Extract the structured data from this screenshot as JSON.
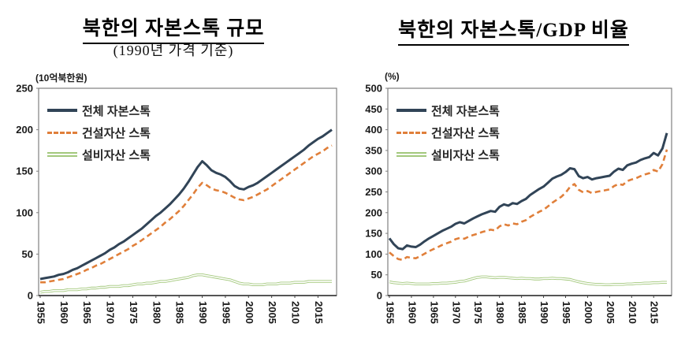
{
  "page": {
    "background": "#ffffff"
  },
  "chart_data": [
    {
      "type": "line",
      "title": "북한의 자본스톡 규모",
      "subtitle": "(1990년 가격 기준)",
      "unit_label": "(10억북한원)",
      "legend_position": "top-left",
      "grid": false,
      "frame_color": "#808080",
      "axis_color": "#404040",
      "ylim": [
        0,
        250
      ],
      "yticks": [
        0,
        50,
        100,
        150,
        200,
        250
      ],
      "xticks": [
        1955,
        1960,
        1965,
        1970,
        1975,
        1980,
        1985,
        1990,
        1995,
        2000,
        2005,
        2010,
        2015
      ],
      "x": [
        1955,
        1956,
        1957,
        1958,
        1959,
        1960,
        1961,
        1962,
        1963,
        1964,
        1965,
        1966,
        1967,
        1968,
        1969,
        1970,
        1971,
        1972,
        1973,
        1974,
        1975,
        1976,
        1977,
        1978,
        1979,
        1980,
        1981,
        1982,
        1983,
        1984,
        1985,
        1986,
        1987,
        1988,
        1989,
        1990,
        1991,
        1992,
        1993,
        1994,
        1995,
        1996,
        1997,
        1998,
        1999,
        2000,
        2001,
        2002,
        2003,
        2004,
        2005,
        2006,
        2007,
        2008,
        2009,
        2010,
        2011,
        2012,
        2013,
        2014,
        2015,
        2016,
        2017,
        2018
      ],
      "series": [
        {
          "name": "전체 자본스톡",
          "color": "#314457",
          "style": "solid",
          "values": [
            20,
            21,
            22,
            23,
            25,
            26,
            28,
            31,
            33,
            36,
            39,
            42,
            45,
            48,
            51,
            55,
            58,
            62,
            65,
            69,
            73,
            77,
            81,
            86,
            91,
            96,
            100,
            105,
            110,
            116,
            122,
            129,
            137,
            146,
            155,
            162,
            157,
            151,
            148,
            146,
            143,
            138,
            132,
            129,
            128,
            131,
            133,
            136,
            140,
            144,
            148,
            152,
            156,
            160,
            164,
            168,
            172,
            176,
            181,
            185,
            189,
            192,
            196,
            200
          ]
        },
        {
          "name": "건설자산 스톡",
          "color": "#e07f3a",
          "style": "dashed",
          "values": [
            16,
            16,
            17,
            18,
            19,
            20,
            22,
            24,
            26,
            28,
            31,
            33,
            36,
            38,
            41,
            44,
            47,
            50,
            53,
            56,
            60,
            63,
            67,
            71,
            75,
            79,
            83,
            88,
            92,
            97,
            102,
            108,
            115,
            122,
            130,
            136,
            133,
            129,
            127,
            126,
            124,
            121,
            118,
            116,
            115,
            117,
            119,
            122,
            125,
            128,
            132,
            136,
            140,
            144,
            148,
            152,
            156,
            160,
            164,
            168,
            171,
            174,
            178,
            181
          ]
        },
        {
          "name": "설비자산 스톡",
          "color": "#a3c87c",
          "style": "double",
          "values": [
            4,
            5,
            5,
            6,
            6,
            6,
            7,
            7,
            7,
            8,
            8,
            9,
            9,
            10,
            10,
            11,
            11,
            11,
            12,
            12,
            13,
            14,
            14,
            15,
            15,
            16,
            17,
            17,
            18,
            19,
            20,
            21,
            22,
            24,
            25,
            25,
            24,
            23,
            22,
            21,
            20,
            19,
            17,
            15,
            14,
            14,
            13,
            13,
            13,
            14,
            14,
            14,
            15,
            15,
            15,
            16,
            16,
            16,
            17,
            17,
            17,
            17,
            17,
            17
          ]
        }
      ]
    },
    {
      "type": "line",
      "title": "북한의 자본스톡/GDP 비율",
      "subtitle": "",
      "unit_label": "(%)",
      "legend_position": "top-left",
      "grid": false,
      "frame_color": "#808080",
      "axis_color": "#404040",
      "ylim": [
        0,
        500
      ],
      "yticks": [
        0,
        50,
        100,
        150,
        200,
        250,
        300,
        350,
        400,
        450,
        500
      ],
      "xticks": [
        1955,
        1960,
        1965,
        1970,
        1975,
        1980,
        1985,
        1990,
        1995,
        2000,
        2005,
        2010,
        2015
      ],
      "x": [
        1955,
        1956,
        1957,
        1958,
        1959,
        1960,
        1961,
        1962,
        1963,
        1964,
        1965,
        1966,
        1967,
        1968,
        1969,
        1970,
        1971,
        1972,
        1973,
        1974,
        1975,
        1976,
        1977,
        1978,
        1979,
        1980,
        1981,
        1982,
        1983,
        1984,
        1985,
        1986,
        1987,
        1988,
        1989,
        1990,
        1991,
        1992,
        1993,
        1994,
        1995,
        1996,
        1997,
        1998,
        1999,
        2000,
        2001,
        2002,
        2003,
        2004,
        2005,
        2006,
        2007,
        2008,
        2009,
        2010,
        2011,
        2012,
        2013,
        2014,
        2015,
        2016,
        2017,
        2018
      ],
      "series": [
        {
          "name": "전체 자본스톡",
          "color": "#314457",
          "style": "solid",
          "values": [
            138,
            124,
            114,
            112,
            121,
            118,
            117,
            123,
            131,
            138,
            144,
            150,
            156,
            161,
            166,
            173,
            177,
            174,
            180,
            186,
            191,
            196,
            200,
            204,
            202,
            214,
            220,
            217,
            223,
            221,
            228,
            233,
            243,
            250,
            257,
            263,
            272,
            282,
            287,
            291,
            298,
            307,
            305,
            288,
            283,
            286,
            280,
            283,
            285,
            287,
            289,
            299,
            306,
            303,
            314,
            318,
            321,
            327,
            331,
            334,
            344,
            338,
            355,
            392
          ]
        },
        {
          "name": "건설자산 스톡",
          "color": "#e07f3a",
          "style": "dashed",
          "values": [
            104,
            95,
            88,
            86,
            93,
            91,
            90,
            95,
            101,
            107,
            112,
            117,
            122,
            126,
            130,
            136,
            139,
            137,
            142,
            146,
            149,
            153,
            156,
            159,
            157,
            167,
            172,
            169,
            174,
            172,
            178,
            182,
            190,
            196,
            202,
            207,
            215,
            224,
            231,
            238,
            248,
            262,
            269,
            255,
            249,
            252,
            247,
            250,
            252,
            254,
            256,
            264,
            269,
            267,
            276,
            280,
            283,
            288,
            292,
            295,
            303,
            299,
            317,
            352
          ]
        },
        {
          "name": "설비자산 스톡",
          "color": "#a3c87c",
          "style": "double",
          "values": [
            33,
            31,
            30,
            29,
            30,
            29,
            28,
            28,
            28,
            28,
            29,
            29,
            30,
            30,
            31,
            32,
            34,
            35,
            38,
            41,
            44,
            45,
            45,
            44,
            43,
            44,
            44,
            43,
            42,
            41,
            42,
            41,
            41,
            40,
            40,
            41,
            41,
            42,
            41,
            41,
            40,
            39,
            36,
            33,
            31,
            29,
            28,
            27,
            27,
            26,
            26,
            27,
            27,
            27,
            28,
            28,
            29,
            29,
            30,
            30,
            31,
            31,
            32,
            32
          ]
        }
      ]
    }
  ]
}
